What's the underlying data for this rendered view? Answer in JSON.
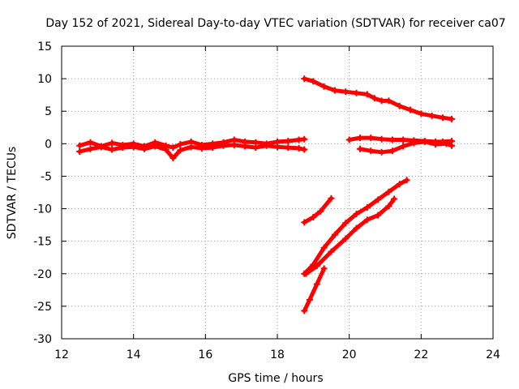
{
  "chart_data": {
    "type": "scatter",
    "title": "Day 152 of 2021, Sidereal Day-to-day VTEC variation (SDTVAR) for receiver ca07",
    "xlabel": "GPS time / hours",
    "ylabel": "SDTVAR / TECUs",
    "xlim": [
      12,
      24
    ],
    "ylim": [
      -30,
      15
    ],
    "xticks": [
      12,
      14,
      16,
      18,
      20,
      22,
      24
    ],
    "yticks": [
      15,
      10,
      5,
      0,
      -5,
      -10,
      -15,
      -20,
      -25,
      -30
    ],
    "grid": true,
    "marker": "plus",
    "color": "#ff0000",
    "series": [
      {
        "points": [
          [
            12.5,
            -0.3
          ],
          [
            12.8,
            0.2
          ],
          [
            13.1,
            -0.4
          ],
          [
            13.4,
            0.1
          ],
          [
            13.7,
            -0.2
          ],
          [
            14.0,
            0.0
          ],
          [
            14.3,
            -0.4
          ],
          [
            14.6,
            0.2
          ],
          [
            14.9,
            -0.3
          ],
          [
            15.1,
            -0.6
          ],
          [
            15.3,
            -0.1
          ],
          [
            15.6,
            0.3
          ],
          [
            15.9,
            -0.2
          ],
          [
            16.2,
            0.0
          ],
          [
            16.5,
            0.2
          ],
          [
            16.8,
            0.6
          ],
          [
            17.1,
            0.3
          ],
          [
            17.4,
            0.2
          ],
          [
            17.7,
            0.0
          ],
          [
            18.0,
            0.3
          ],
          [
            18.3,
            0.4
          ],
          [
            18.6,
            0.6
          ],
          [
            18.75,
            0.7
          ]
        ]
      },
      {
        "points": [
          [
            12.5,
            -1.2
          ],
          [
            12.8,
            -0.8
          ],
          [
            13.1,
            -0.5
          ],
          [
            13.4,
            -0.9
          ],
          [
            13.7,
            -0.6
          ],
          [
            14.0,
            -0.5
          ],
          [
            14.3,
            -0.8
          ],
          [
            14.6,
            -0.4
          ],
          [
            14.9,
            -0.9
          ],
          [
            15.1,
            -2.2
          ],
          [
            15.3,
            -1.0
          ],
          [
            15.6,
            -0.5
          ],
          [
            15.9,
            -0.7
          ],
          [
            16.2,
            -0.6
          ],
          [
            16.5,
            -0.3
          ],
          [
            16.8,
            -0.2
          ],
          [
            17.1,
            -0.4
          ],
          [
            17.4,
            -0.6
          ],
          [
            17.7,
            -0.3
          ],
          [
            18.0,
            -0.5
          ],
          [
            18.3,
            -0.6
          ],
          [
            18.6,
            -0.7
          ],
          [
            18.75,
            -0.9
          ]
        ]
      },
      {
        "points": [
          [
            18.75,
            10.0
          ],
          [
            19.0,
            9.6
          ],
          [
            19.3,
            8.8
          ],
          [
            19.6,
            8.2
          ],
          [
            19.9,
            8.0
          ],
          [
            20.2,
            7.8
          ],
          [
            20.5,
            7.6
          ],
          [
            20.7,
            7.0
          ],
          [
            20.9,
            6.6
          ],
          [
            21.1,
            6.6
          ],
          [
            21.4,
            5.8
          ],
          [
            21.7,
            5.2
          ],
          [
            22.0,
            4.6
          ],
          [
            22.3,
            4.3
          ],
          [
            22.6,
            4.0
          ],
          [
            22.85,
            3.8
          ]
        ]
      },
      {
        "points": [
          [
            20.0,
            0.6
          ],
          [
            20.3,
            0.9
          ],
          [
            20.6,
            0.9
          ],
          [
            20.9,
            0.7
          ],
          [
            21.2,
            0.6
          ],
          [
            21.5,
            0.6
          ],
          [
            21.8,
            0.5
          ],
          [
            22.1,
            0.4
          ],
          [
            22.4,
            0.3
          ],
          [
            22.6,
            0.3
          ],
          [
            22.85,
            0.4
          ]
        ]
      },
      {
        "points": [
          [
            20.3,
            -0.8
          ],
          [
            20.6,
            -1.1
          ],
          [
            20.9,
            -1.3
          ],
          [
            21.2,
            -1.1
          ],
          [
            21.5,
            -0.4
          ],
          [
            21.8,
            0.1
          ],
          [
            22.1,
            0.3
          ],
          [
            22.4,
            -0.1
          ],
          [
            22.7,
            0.0
          ],
          [
            22.85,
            -0.3
          ]
        ]
      },
      {
        "points": [
          [
            18.75,
            -12.1
          ],
          [
            19.0,
            -11.3
          ],
          [
            19.2,
            -10.4
          ],
          [
            19.5,
            -8.4
          ]
        ]
      },
      {
        "points": [
          [
            18.75,
            -20.0
          ],
          [
            19.0,
            -18.6
          ],
          [
            19.3,
            -16.0
          ],
          [
            19.6,
            -14.0
          ],
          [
            19.9,
            -12.2
          ],
          [
            20.2,
            -10.8
          ],
          [
            20.5,
            -9.8
          ],
          [
            20.8,
            -8.6
          ],
          [
            21.1,
            -7.4
          ],
          [
            21.4,
            -6.2
          ],
          [
            21.6,
            -5.6
          ]
        ]
      },
      {
        "points": [
          [
            18.8,
            -20.0
          ],
          [
            19.1,
            -18.8
          ],
          [
            19.5,
            -16.6
          ],
          [
            19.9,
            -14.6
          ],
          [
            20.2,
            -13.0
          ],
          [
            20.5,
            -11.7
          ],
          [
            20.8,
            -11.0
          ],
          [
            21.1,
            -9.6
          ],
          [
            21.25,
            -8.5
          ]
        ]
      },
      {
        "points": [
          [
            18.75,
            -25.7
          ],
          [
            18.9,
            -24.0
          ],
          [
            19.1,
            -21.6
          ],
          [
            19.3,
            -19.2
          ]
        ]
      }
    ]
  }
}
